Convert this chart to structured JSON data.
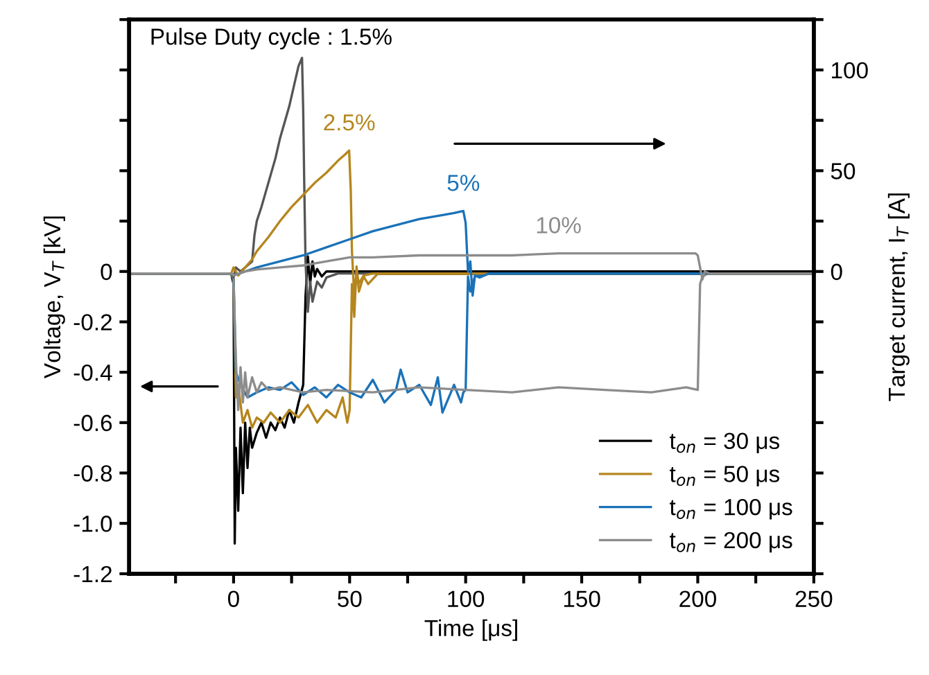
{
  "chart_data": {
    "type": "line",
    "xlabel": "Time [μs]",
    "ylabel": "Voltage, V$_{T}$ [kV]",
    "y2label": "Target current, I$_{T}$ [A]",
    "xlim": [
      -45,
      250
    ],
    "xticks": [
      {
        "value": -25,
        "label": null
      },
      0,
      {
        "value": 25,
        "label": null
      },
      50,
      {
        "value": 75,
        "label": null
      },
      100,
      {
        "value": 125,
        "label": null
      },
      150,
      {
        "value": 175,
        "label": null
      },
      200,
      {
        "value": 225,
        "label": null
      },
      250
    ],
    "ylim": [
      -1.2,
      1.0
    ],
    "yticks": [
      -1.2,
      {
        "value": -1.0,
        "label": "-1.0"
      },
      -0.8,
      -0.6,
      -0.4,
      -0.2,
      0,
      {
        "value": 0.2,
        "label": null
      },
      {
        "value": 0.4,
        "label": null
      },
      {
        "value": 0.6,
        "label": null
      },
      {
        "value": 0.8,
        "label": null
      },
      {
        "value": 1.0,
        "label": null
      }
    ],
    "y2lim": [
      -150,
      125
    ],
    "y2ticks": [
      {
        "value": -150,
        "label": null
      },
      {
        "value": -125,
        "label": null
      },
      {
        "value": -100,
        "label": null
      },
      {
        "value": -75,
        "label": null
      },
      {
        "value": -50,
        "label": null
      },
      {
        "value": -25,
        "label": null
      },
      0,
      {
        "value": 25,
        "label": null
      },
      50,
      {
        "value": 75,
        "label": null
      },
      100,
      {
        "value": 125,
        "label": null
      }
    ],
    "legend": "bottom right",
    "annotations": [
      "Pulse Duty cycle : 1.5%"
    ],
    "series": [
      {
        "name": "t$_{on}$ = 30 μs",
        "color": "#000000",
        "x": [
          -45,
          -20,
          -1,
          0,
          0.5,
          1,
          2,
          3,
          4,
          5,
          6,
          7,
          8,
          10,
          12,
          14,
          16,
          18,
          20,
          22,
          24,
          26,
          28,
          30,
          31,
          32,
          33,
          34,
          35,
          36,
          38,
          40,
          45,
          60,
          100,
          150,
          200,
          250
        ],
        "values": [
          -0.01,
          -0.01,
          -0.01,
          -0.05,
          -1.08,
          -0.7,
          -0.95,
          -0.62,
          -0.88,
          -0.6,
          -0.78,
          -0.62,
          -0.7,
          -0.64,
          -0.6,
          -0.66,
          -0.6,
          -0.63,
          -0.58,
          -0.62,
          -0.55,
          -0.6,
          -0.52,
          -0.45,
          -0.1,
          0.06,
          -0.05,
          0.04,
          -0.02,
          0.01,
          -0.02,
          0,
          0,
          0,
          0,
          0,
          0,
          0
        ]
      },
      {
        "name": "t$_{on}$ = 50 μs",
        "color": "#b5861e",
        "x": [
          -45,
          -1,
          0,
          1,
          2,
          4,
          6,
          8,
          10,
          13,
          16,
          20,
          24,
          28,
          32,
          36,
          40,
          44,
          47,
          49,
          50,
          51,
          52,
          53,
          54,
          56,
          58,
          62,
          70,
          100,
          150,
          250
        ],
        "values": [
          -0.01,
          -0.01,
          -0.03,
          -0.5,
          -0.45,
          -0.6,
          -0.55,
          -0.62,
          -0.58,
          -0.6,
          -0.56,
          -0.6,
          -0.55,
          -0.58,
          -0.53,
          -0.6,
          -0.55,
          -0.58,
          -0.5,
          -0.6,
          -0.55,
          -0.05,
          -0.18,
          0.02,
          -0.08,
          -0.02,
          -0.05,
          -0.01,
          -0.01,
          -0.01,
          -0.01,
          -0.01
        ]
      },
      {
        "name": "t$_{on}$ = 100 μs",
        "color": "#1a72b8",
        "x": [
          -45,
          -1,
          0,
          1,
          3,
          6,
          10,
          15,
          20,
          25,
          30,
          35,
          40,
          45,
          50,
          55,
          60,
          65,
          70,
          72,
          75,
          80,
          85,
          88,
          90,
          95,
          98,
          99,
          100,
          101,
          102,
          104,
          108,
          115,
          150,
          250
        ],
        "values": [
          -0.01,
          -0.01,
          -0.03,
          -0.4,
          -0.45,
          -0.5,
          -0.48,
          -0.46,
          -0.47,
          -0.44,
          -0.49,
          -0.46,
          -0.5,
          -0.45,
          -0.48,
          -0.5,
          -0.43,
          -0.52,
          -0.47,
          -0.39,
          -0.48,
          -0.45,
          -0.53,
          -0.42,
          -0.56,
          -0.45,
          -0.52,
          -0.48,
          -0.47,
          -0.02,
          -0.08,
          -0.02,
          -0.01,
          -0.01,
          -0.01,
          -0.01
        ]
      },
      {
        "name": "t$_{on}$ = 200 μs",
        "color": "#8c8c8c",
        "x": [
          -45,
          -1,
          0,
          1,
          2,
          3,
          4,
          5,
          6,
          8,
          10,
          12,
          15,
          20,
          30,
          40,
          60,
          80,
          100,
          120,
          140,
          160,
          180,
          195,
          200,
          201,
          202,
          204,
          210,
          250
        ],
        "values": [
          -0.01,
          -0.01,
          -0.03,
          -0.35,
          -0.55,
          -0.38,
          -0.52,
          -0.4,
          -0.5,
          -0.42,
          -0.48,
          -0.44,
          -0.47,
          -0.46,
          -0.48,
          -0.47,
          -0.48,
          -0.46,
          -0.47,
          -0.48,
          -0.46,
          -0.47,
          -0.48,
          -0.46,
          -0.47,
          -0.05,
          -0.02,
          -0.01,
          -0.01,
          -0.01
        ]
      },
      {
        "axis": "y2",
        "color": "#555555",
        "x": [
          -45,
          -1,
          0,
          1,
          3,
          6,
          8,
          9,
          10,
          12,
          14,
          16,
          18,
          20,
          22,
          24,
          26,
          28,
          29.5,
          30,
          30.5,
          31,
          32,
          33,
          34,
          36,
          38,
          40,
          45,
          60,
          250
        ],
        "values": [
          -1,
          -1,
          -3,
          2,
          0,
          3,
          5,
          18,
          25,
          32,
          40,
          48,
          56,
          66,
          74,
          82,
          92,
          102,
          106,
          80,
          40,
          5,
          -20,
          -5,
          -15,
          -5,
          -8,
          -3,
          -1,
          -1,
          -1
        ]
      },
      {
        "axis": "y2",
        "name": "2.5%",
        "color": "#b5861e",
        "x": [
          -45,
          -1,
          0,
          2,
          5,
          8,
          10,
          15,
          20,
          25,
          30,
          35,
          40,
          45,
          48,
          49.8,
          50.5,
          51,
          52,
          53,
          54,
          56,
          60,
          80,
          250
        ],
        "values": [
          -1,
          -1,
          2,
          -2,
          2,
          6,
          10,
          17,
          25,
          32,
          38,
          44,
          49,
          55,
          58,
          60,
          40,
          10,
          -12,
          0,
          -6,
          -2,
          -1,
          -1,
          -1
        ]
      },
      {
        "axis": "y2",
        "name": "5%",
        "color": "#1a72b8",
        "x": [
          -45,
          -1,
          0,
          5,
          10,
          20,
          30,
          40,
          50,
          60,
          70,
          80,
          90,
          95,
          99,
          100,
          101,
          102,
          103,
          104,
          106,
          110,
          130,
          250
        ],
        "values": [
          -1,
          -1,
          -2,
          0,
          2,
          5,
          8,
          12,
          16,
          20,
          23,
          26,
          28,
          29,
          30,
          24,
          0,
          5,
          -12,
          -2,
          -3,
          -1,
          -1,
          -1
        ]
      },
      {
        "axis": "y2",
        "name": "10%",
        "color": "#8c8c8c",
        "x": [
          -45,
          -1,
          0,
          5,
          10,
          20,
          30,
          40,
          50,
          60,
          80,
          100,
          120,
          140,
          160,
          180,
          195,
          199,
          200,
          201,
          202,
          203,
          205,
          210,
          250
        ],
        "values": [
          -1,
          -1,
          -2,
          0,
          1,
          2,
          3,
          5,
          7,
          7,
          8,
          8,
          8,
          9,
          9,
          9,
          9,
          9,
          8,
          2,
          -4,
          0,
          -1,
          -1,
          -1
        ]
      }
    ]
  }
}
